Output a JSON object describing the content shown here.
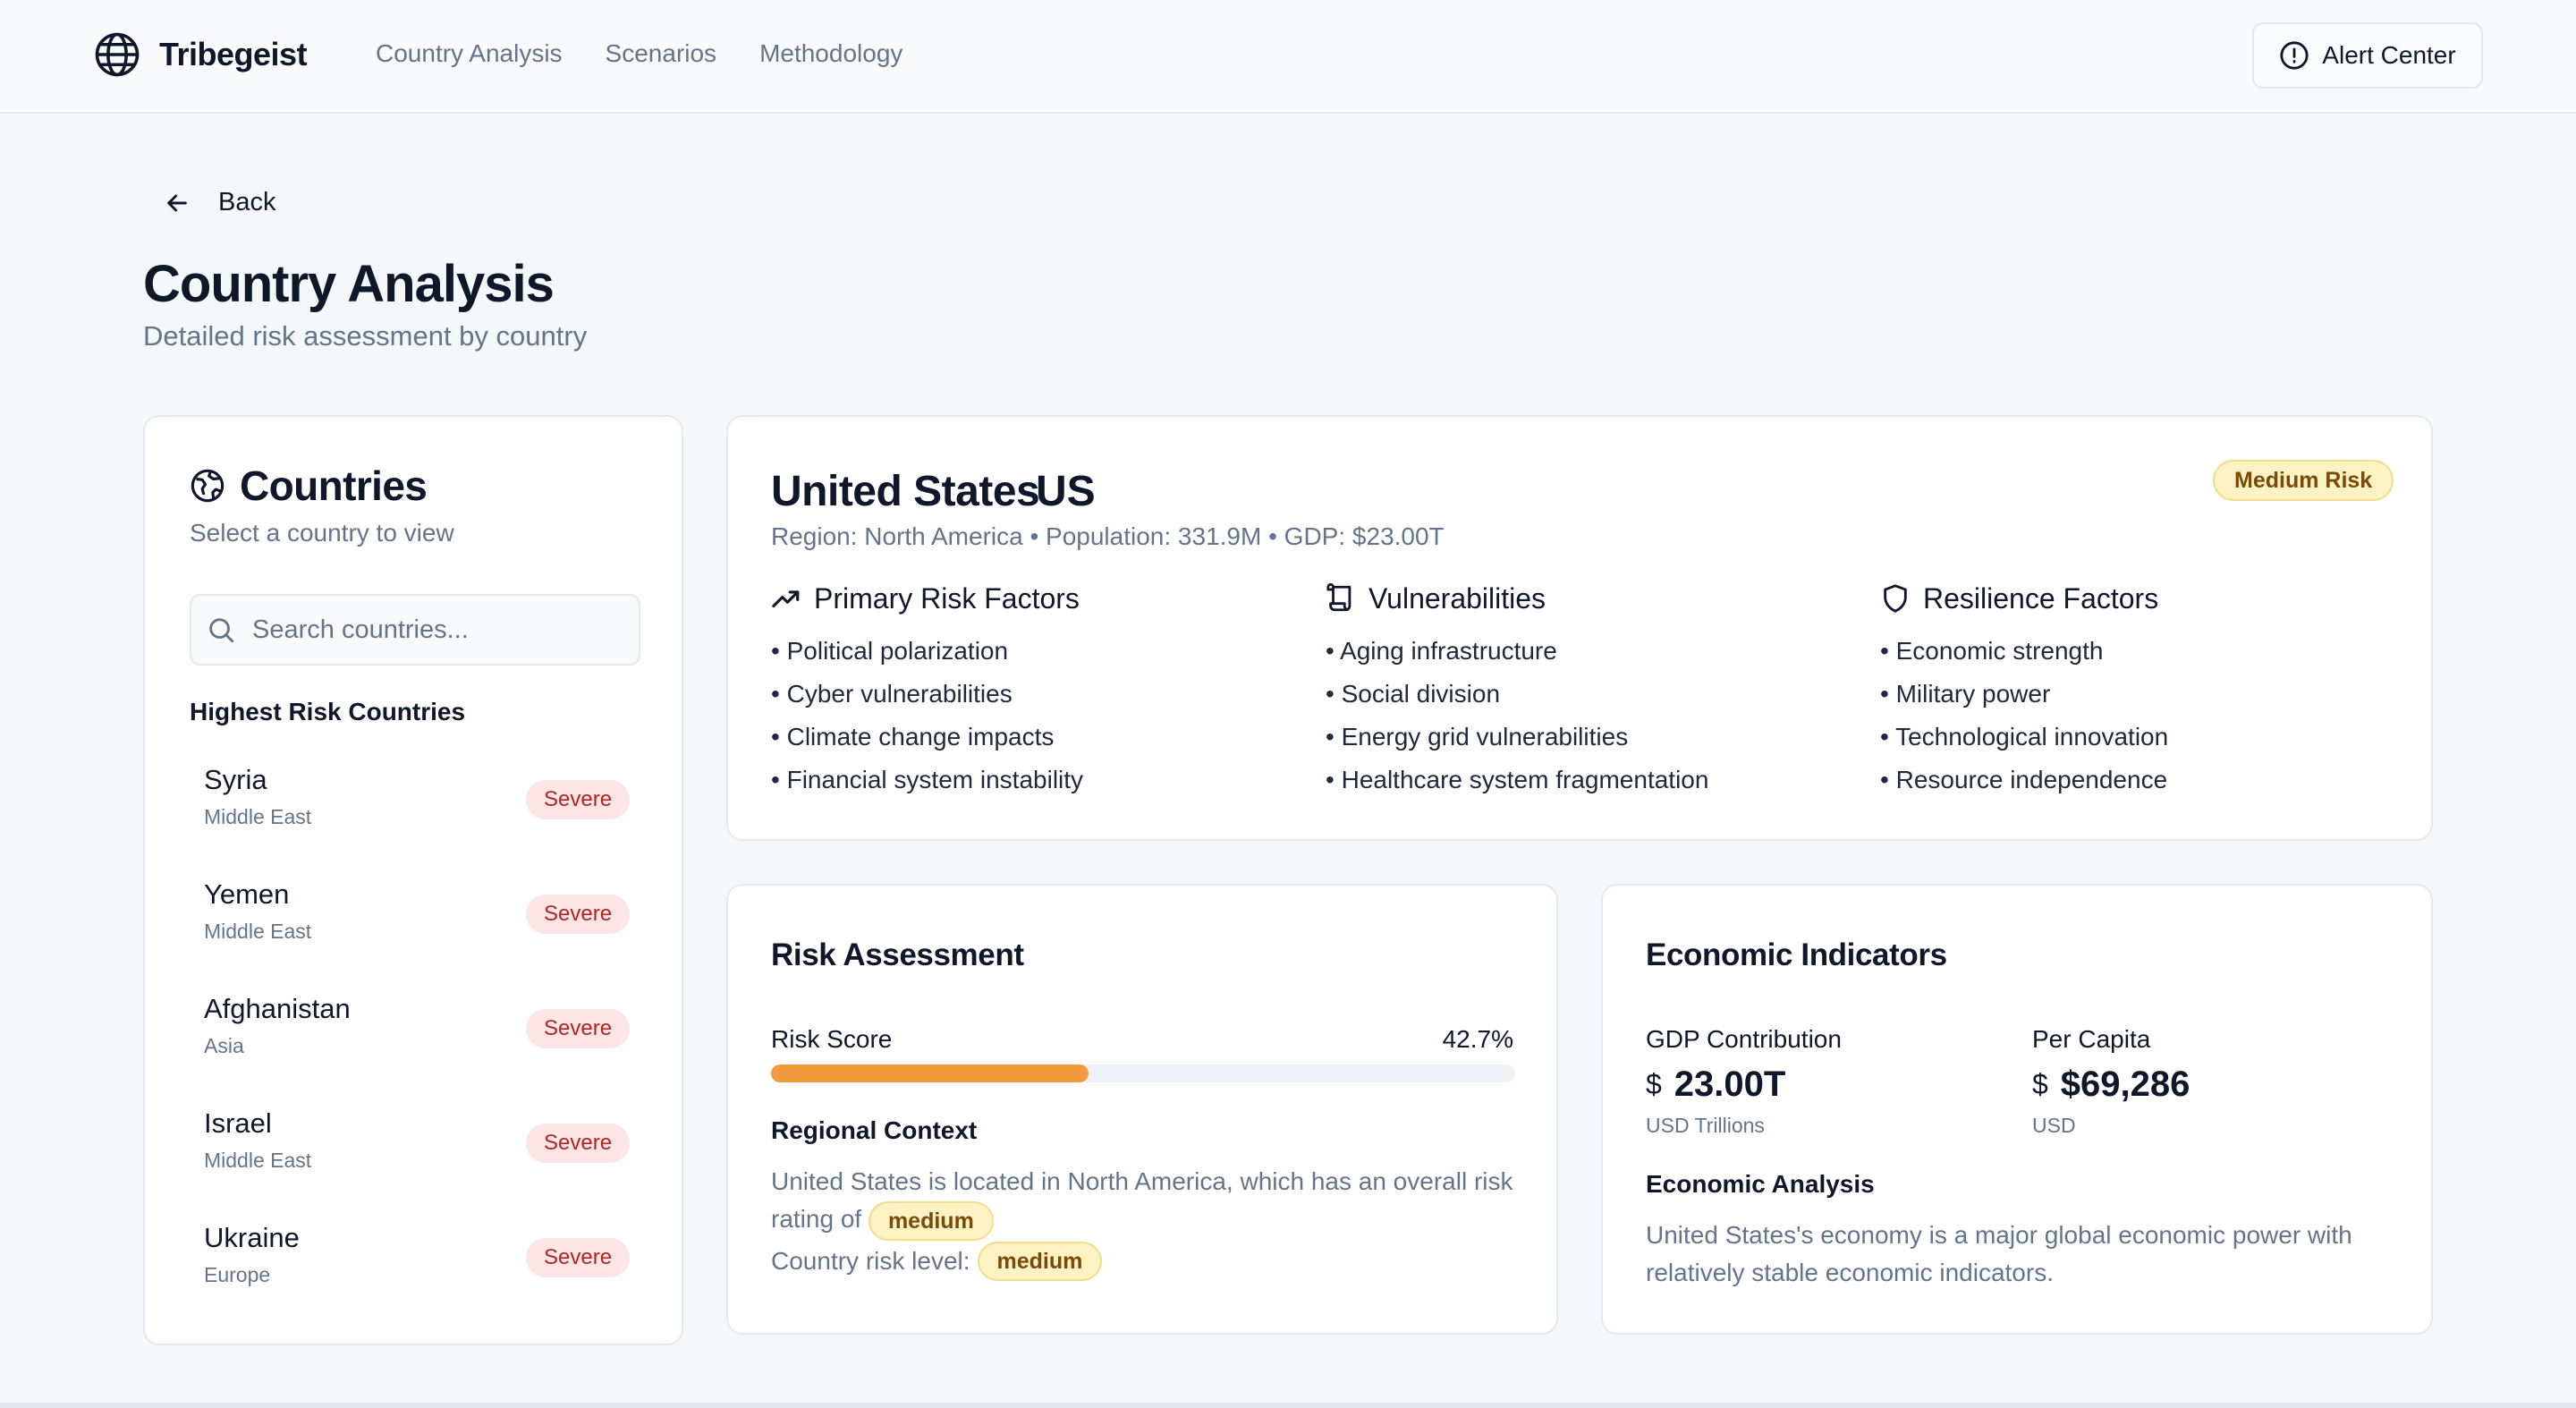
{
  "header": {
    "brand": "Tribegeist",
    "nav": [
      "Country Analysis",
      "Scenarios",
      "Methodology"
    ],
    "alert_label": "Alert Center"
  },
  "page": {
    "back_label": "Back",
    "title": "Country Analysis",
    "subtitle": "Detailed risk assessment by country"
  },
  "countries_panel": {
    "title": "Countries",
    "subtitle": "Select a country to view",
    "search_placeholder": "Search countries...",
    "list_title": "Highest Risk Countries",
    "items": [
      {
        "name": "Syria",
        "region": "Middle East",
        "level": "Severe"
      },
      {
        "name": "Yemen",
        "region": "Middle East",
        "level": "Severe"
      },
      {
        "name": "Afghanistan",
        "region": "Asia",
        "level": "Severe"
      },
      {
        "name": "Israel",
        "region": "Middle East",
        "level": "Severe"
      },
      {
        "name": "Ukraine",
        "region": "Europe",
        "level": "Severe"
      }
    ]
  },
  "country": {
    "name": "United States",
    "code": "US",
    "meta": "Region: North America • Population: 331.9M • GDP: $23.00T",
    "risk_badge": "Medium Risk",
    "primary_risk": {
      "title": "Primary Risk Factors",
      "items": [
        "Political polarization",
        "Cyber vulnerabilities",
        "Climate change impacts",
        "Financial system instability"
      ]
    },
    "vulnerabilities": {
      "title": "Vulnerabilities",
      "items": [
        "Aging infrastructure",
        "Social division",
        "Energy grid vulnerabilities",
        "Healthcare system fragmentation"
      ]
    },
    "resilience": {
      "title": "Resilience Factors",
      "items": [
        "Economic strength",
        "Military power",
        "Technological innovation",
        "Resource independence"
      ]
    }
  },
  "risk_assessment": {
    "title": "Risk Assessment",
    "score_label": "Risk Score",
    "score_text": "42.7%",
    "score_value": 42.7,
    "regional_title": "Regional Context",
    "regional_text": "United States is located in North America, which has an overall risk rating of",
    "regional_rating": "medium",
    "country_level_label": "Country risk level:",
    "country_level": "medium"
  },
  "economic": {
    "title": "Economic Indicators",
    "gdp_label": "GDP Contribution",
    "gdp_currency": "$",
    "gdp_value": "23.00T",
    "gdp_unit": "USD Trillions",
    "per_capita_label": "Per Capita",
    "per_capita_currency": "$",
    "per_capita_value": "$69,286",
    "per_capita_unit": "USD",
    "analysis_title": "Economic Analysis",
    "analysis_text": "United States's economy is a major global economic power with relatively stable economic indicators."
  },
  "colors": {
    "severe_bg": "#fde5e5",
    "severe_text": "#b42323",
    "medium_bg": "#fdf2c4",
    "progress": "#f29a3c"
  }
}
